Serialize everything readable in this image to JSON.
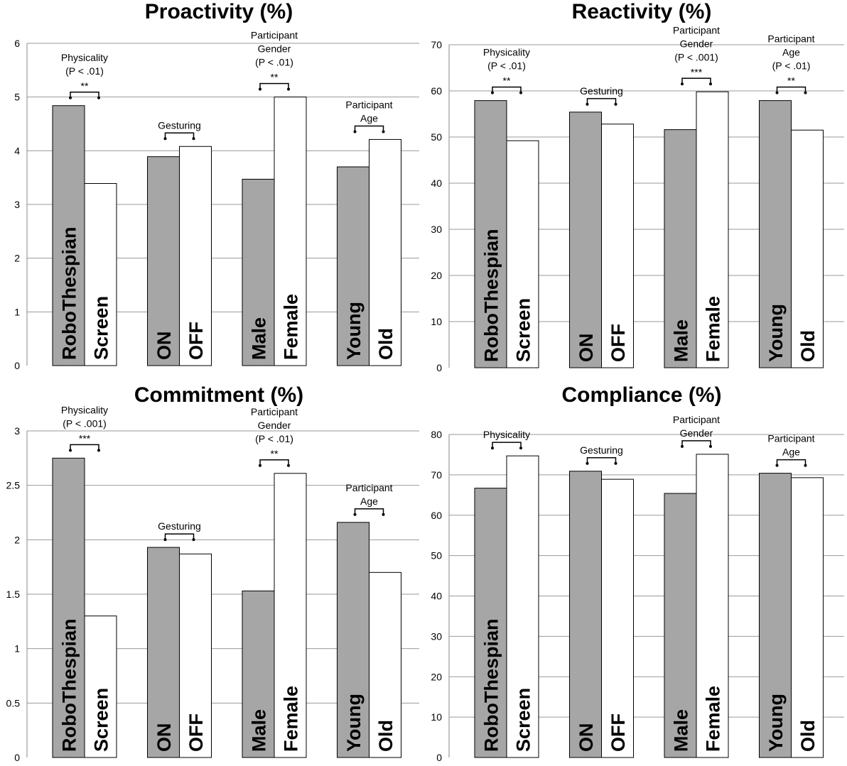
{
  "chart_data": [
    {
      "type": "bar",
      "title": "Proactivity (%)",
      "ylim": [
        0,
        6
      ],
      "yticks": [
        0,
        1,
        2,
        3,
        4,
        5,
        6
      ],
      "groups": [
        {
          "labels": [
            "RoboThespian",
            "Screen"
          ],
          "values": [
            4.84,
            3.39
          ],
          "annotation": [
            "Physicality",
            "(P < .01)",
            "**"
          ]
        },
        {
          "labels": [
            "ON",
            "OFF"
          ],
          "values": [
            3.89,
            4.08
          ],
          "annotation": [
            "Gesturing"
          ]
        },
        {
          "labels": [
            "Male",
            "Female"
          ],
          "values": [
            3.47,
            5.0
          ],
          "annotation": [
            "Participant",
            "Gender",
            "(P < .01)",
            "**"
          ]
        },
        {
          "labels": [
            "Young",
            "Old"
          ],
          "values": [
            3.7,
            4.21
          ],
          "annotation": [
            "Participant",
            "Age"
          ]
        }
      ],
      "colors": [
        "#a6a6a6",
        "#ffffff"
      ],
      "grid": true
    },
    {
      "type": "bar",
      "title": "Reactivity (%)",
      "ylim": [
        0,
        70
      ],
      "yticks": [
        0,
        10,
        20,
        30,
        40,
        50,
        60,
        70
      ],
      "groups": [
        {
          "labels": [
            "RoboThespian",
            "Screen"
          ],
          "values": [
            57.9,
            49.2
          ],
          "annotation": [
            "Physicality",
            "(P < .01)",
            "**"
          ]
        },
        {
          "labels": [
            "ON",
            "OFF"
          ],
          "values": [
            55.4,
            52.8
          ],
          "annotation": [
            "Gesturing"
          ]
        },
        {
          "labels": [
            "Male",
            "Female"
          ],
          "values": [
            51.6,
            59.8
          ],
          "annotation": [
            "Participant",
            "Gender",
            "(P < .001)",
            "***"
          ]
        },
        {
          "labels": [
            "Young",
            "Old"
          ],
          "values": [
            57.9,
            51.5
          ],
          "annotation": [
            "Participant",
            "Age",
            "(P < .01)",
            "**"
          ]
        }
      ],
      "colors": [
        "#a6a6a6",
        "#ffffff"
      ],
      "grid": true
    },
    {
      "type": "bar",
      "title": "Commitment (%)",
      "ylim": [
        0,
        3
      ],
      "yticks": [
        0,
        0.5,
        1,
        1.5,
        2,
        2.5,
        3
      ],
      "groups": [
        {
          "labels": [
            "RoboThespian",
            "Screen"
          ],
          "values": [
            2.75,
            1.3
          ],
          "annotation": [
            "Physicality",
            "(P < .001)",
            "***"
          ]
        },
        {
          "labels": [
            "ON",
            "OFF"
          ],
          "values": [
            1.93,
            1.87
          ],
          "annotation": [
            "Gesturing"
          ]
        },
        {
          "labels": [
            "Male",
            "Female"
          ],
          "values": [
            1.53,
            2.61
          ],
          "annotation": [
            "Participant",
            "Gender",
            "(P < .01)",
            "**"
          ]
        },
        {
          "labels": [
            "Young",
            "Old"
          ],
          "values": [
            2.16,
            1.7
          ],
          "annotation": [
            "Participant",
            "Age"
          ]
        }
      ],
      "colors": [
        "#a6a6a6",
        "#ffffff"
      ],
      "grid": true
    },
    {
      "type": "bar",
      "title": "Compliance (%)",
      "ylim": [
        0,
        80
      ],
      "yticks": [
        0,
        10,
        20,
        30,
        40,
        50,
        60,
        70,
        80
      ],
      "groups": [
        {
          "labels": [
            "RoboThespian",
            "Screen"
          ],
          "values": [
            66.7,
            74.7
          ],
          "annotation": [
            "Physicality"
          ]
        },
        {
          "labels": [
            "ON",
            "OFF"
          ],
          "values": [
            70.9,
            68.9
          ],
          "annotation": [
            "Gesturing"
          ]
        },
        {
          "labels": [
            "Male",
            "Female"
          ],
          "values": [
            65.4,
            75.1
          ],
          "annotation": [
            "Participant",
            "Gender"
          ]
        },
        {
          "labels": [
            "Young",
            "Old"
          ],
          "values": [
            70.4,
            69.3
          ],
          "annotation": [
            "Participant",
            "Age"
          ]
        }
      ],
      "colors": [
        "#a6a6a6",
        "#ffffff"
      ],
      "grid": true
    }
  ]
}
